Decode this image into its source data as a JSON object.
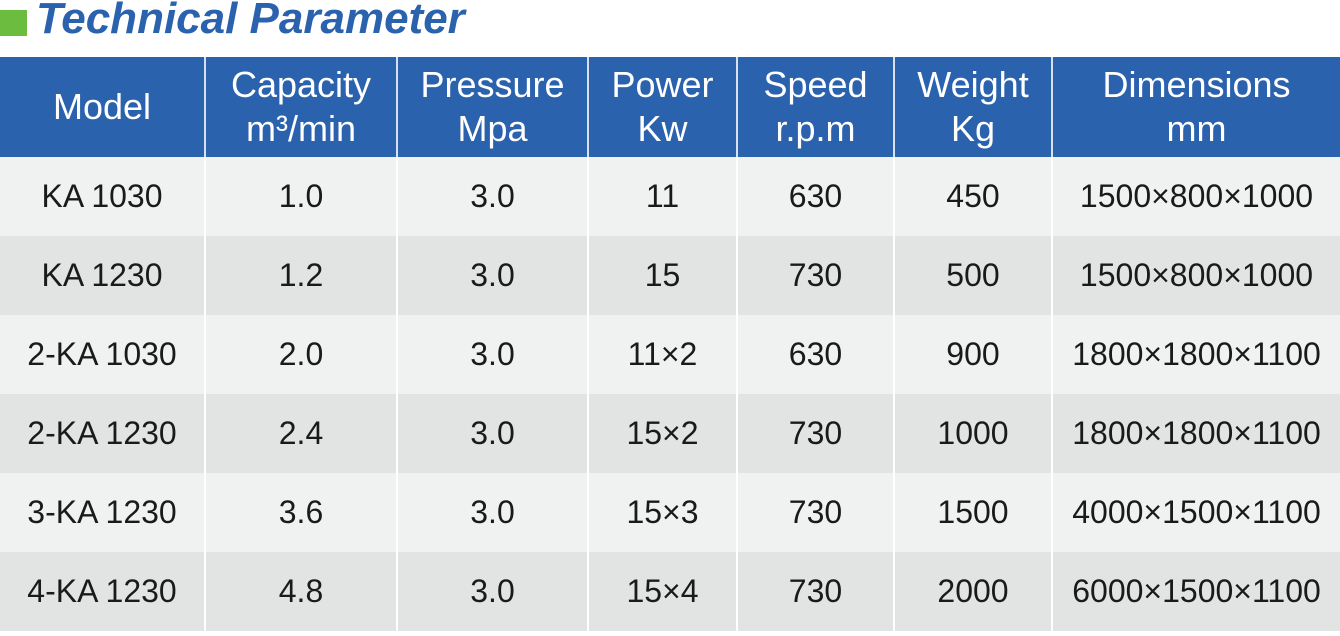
{
  "title": "Technical Parameter",
  "colors": {
    "header": "#2b62ae",
    "accent": "#6cbd3f"
  },
  "headers": [
    [
      "Model",
      ""
    ],
    [
      "Capacity",
      "m³/min"
    ],
    [
      "Pressure",
      "Mpa"
    ],
    [
      "Power",
      "Kw"
    ],
    [
      "Speed",
      "r.p.m"
    ],
    [
      "Weight",
      "Kg"
    ],
    [
      "Dimensions",
      "mm"
    ]
  ],
  "rows": [
    [
      "KA 1030",
      "1.0",
      "3.0",
      "11",
      "630",
      "450",
      "1500×800×1000"
    ],
    [
      "KA 1230",
      "1.2",
      "3.0",
      "15",
      "730",
      "500",
      "1500×800×1000"
    ],
    [
      "2-KA 1030",
      "2.0",
      "3.0",
      "11×2",
      "630",
      "900",
      "1800×1800×1100"
    ],
    [
      "2-KA 1230",
      "2.4",
      "3.0",
      "15×2",
      "730",
      "1000",
      "1800×1800×1100"
    ],
    [
      "3-KA 1230",
      "3.6",
      "3.0",
      "15×3",
      "730",
      "1500",
      "4000×1500×1100"
    ],
    [
      "4-KA 1230",
      "4.8",
      "3.0",
      "15×4",
      "730",
      "2000",
      "6000×1500×1100"
    ]
  ]
}
